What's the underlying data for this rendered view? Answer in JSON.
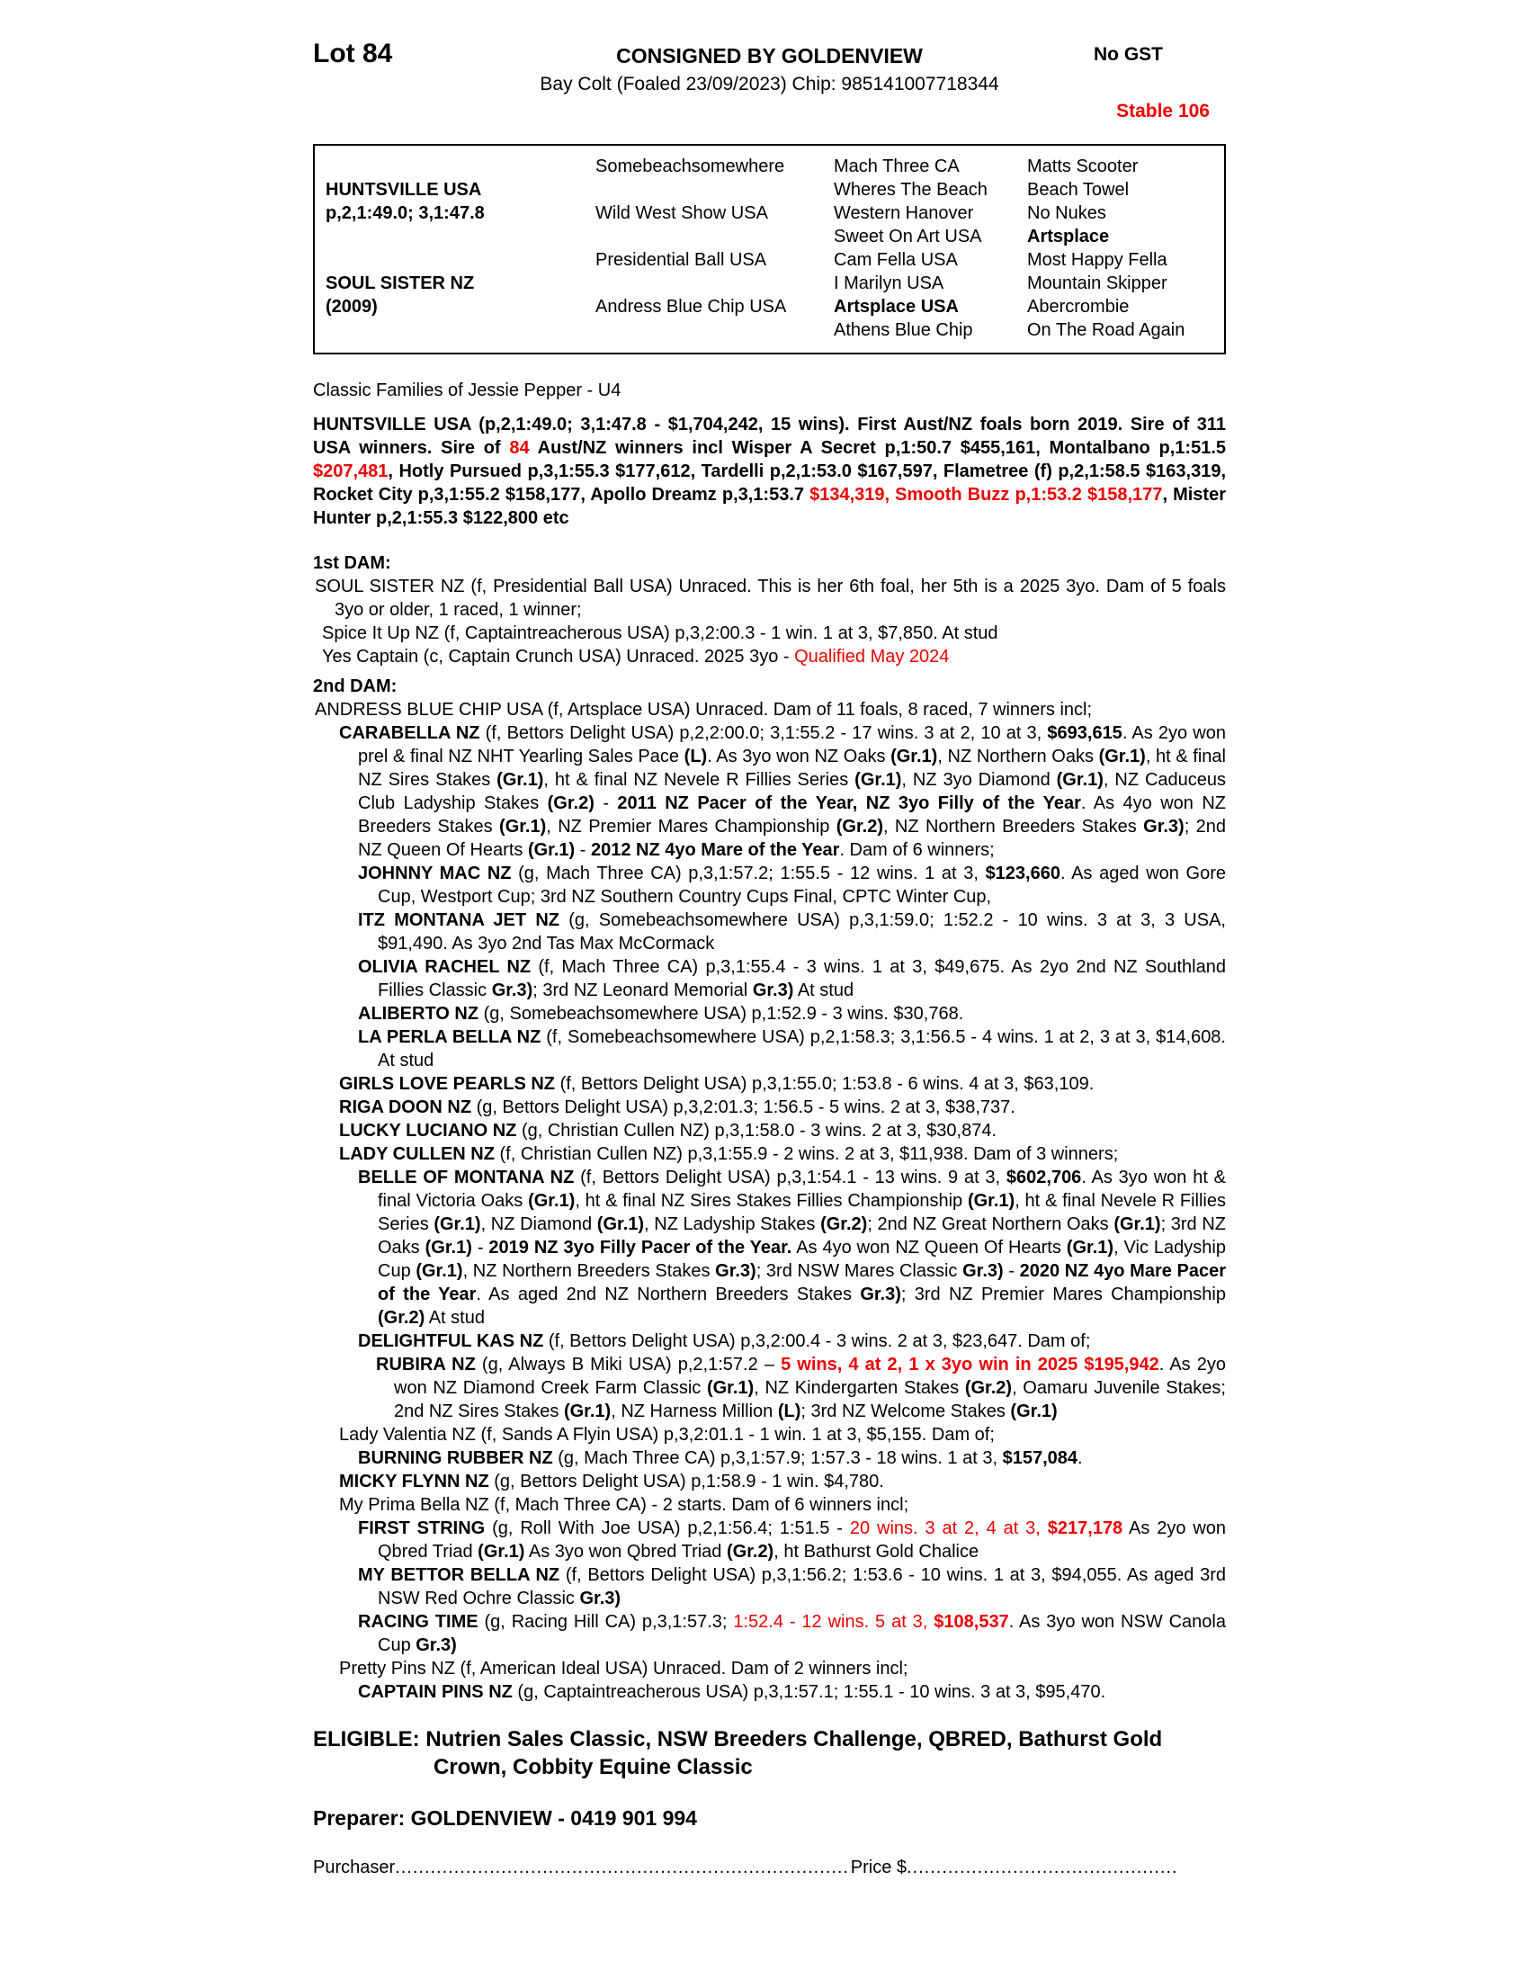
{
  "header": {
    "lot": "Lot 84",
    "consigned": "CONSIGNED BY GOLDENVIEW",
    "no_gst": "No GST",
    "foal_info": "Bay Colt (Foaled 23/09/2023) Chip: 985141007718344",
    "stable": "Stable 106"
  },
  "colors": {
    "accent_red": "#ee0000",
    "text": "#000000"
  },
  "pedigree": {
    "sire": {
      "name": "HUNTSVILLE USA",
      "record": "p,2,1:49.0; 3,1:47.8"
    },
    "dam": {
      "name": "SOUL SISTER NZ",
      "year": "(2009)"
    },
    "gen2": [
      "Somebeachsomewhere",
      "Wild West Show USA",
      "Presidential Ball USA",
      "Andress Blue Chip USA"
    ],
    "gen3": [
      "Mach Three CA",
      "Wheres The Beach",
      "Western Hanover",
      "Sweet On Art USA",
      "Cam Fella USA",
      "I Marilyn USA",
      "Artsplace USA",
      "Athens Blue Chip"
    ],
    "gen4": [
      "Matts Scooter",
      "Beach Towel",
      "No Nukes",
      "Artsplace",
      "Most Happy Fella",
      "Mountain Skipper",
      "Abercrombie",
      "On The Road Again"
    ]
  },
  "body": {
    "paragraphs": [
      {
        "name": "family-note",
        "cls": "flush",
        "spans": [
          [
            "n",
            "Classic Families of Jessie Pepper - U4"
          ]
        ]
      },
      {
        "name": "sire-summary",
        "cls": "flush",
        "spans": [
          [
            "b",
            "HUNTSVILLE USA (p,2,1:49.0; 3,1:47.8 - $1,704,242, 15 wins).  First Aust/NZ foals born 2019. Sire of 311 USA winners. Sire of "
          ],
          [
            "br",
            "84"
          ],
          [
            "b",
            " Aust/NZ winners incl Wisper A Secret p,1:50.7 $455,161, Montalbano p,1:51.5 "
          ],
          [
            "br",
            "$207,481"
          ],
          [
            "b",
            ", Hotly Pursued p,3,1:55.3 $177,612, Tardelli p,2,1:53.0 $167,597, Flametree (f) p,2,1:58.5 $163,319, Rocket City p,3,1:55.2 $158,177, Apollo Dreamz p,3,1:53.7 "
          ],
          [
            "br",
            "$134,319, Smooth Buzz p,1:53.2 $158,177"
          ],
          [
            "b",
            ", Mister Hunter p,2,1:55.3 $122,800 etc"
          ]
        ]
      },
      {
        "name": "first-dam-heading",
        "cls": "flush",
        "spans": [
          [
            "b",
            "1st DAM:"
          ]
        ]
      },
      {
        "name": "soul-sister",
        "cls": "dam",
        "spans": [
          [
            "n",
            "SOUL SISTER NZ (f, Presidential Ball USA) Unraced. This is her 6th foal, her 5th is a 2025 3yo. Dam of 5 foals 3yo or older, 1 raced, 1 winner;"
          ]
        ]
      },
      {
        "name": "spice-it-up",
        "cls": "l1s",
        "spans": [
          [
            "n",
            "Spice It Up NZ (f, Captaintreacherous USA) p,3,2:00.3 - 1 win. 1 at 3, $7,850. At stud"
          ]
        ]
      },
      {
        "name": "yes-captain",
        "cls": "l1s",
        "spans": [
          [
            "n",
            "Yes Captain (c, Captain Crunch USA) Unraced. 2025 3yo - "
          ],
          [
            "r",
            "Qualified May 2024"
          ]
        ]
      },
      {
        "name": "second-dam-heading",
        "cls": "flush",
        "spans": [
          [
            "b",
            "2nd DAM:"
          ]
        ]
      },
      {
        "name": "andress-blue-chip",
        "cls": "dam",
        "spans": [
          [
            "n",
            "ANDRESS BLUE CHIP USA (f, Artsplace USA) Unraced. Dam of 11 foals, 8 raced, 7 winners incl;"
          ]
        ]
      },
      {
        "name": "carabella",
        "cls": "l1",
        "spans": [
          [
            "b",
            "CARABELLA NZ"
          ],
          [
            "n",
            " (f, Bettors Delight USA) p,2,2:00.0; 3,1:55.2 - 17 wins. 3 at 2, 10 at 3, "
          ],
          [
            "b",
            "$693,615"
          ],
          [
            "n",
            ". As 2yo won prel & final NZ NHT Yearling Sales Pace "
          ],
          [
            "b",
            "(L)"
          ],
          [
            "n",
            ". As 3yo won NZ Oaks "
          ],
          [
            "b",
            "(Gr.1)"
          ],
          [
            "n",
            ", NZ Northern Oaks "
          ],
          [
            "b",
            "(Gr.1)"
          ],
          [
            "n",
            ", ht & final NZ Sires Stakes "
          ],
          [
            "b",
            "(Gr.1)"
          ],
          [
            "n",
            ", ht & final NZ Nevele R Fillies Series "
          ],
          [
            "b",
            "(Gr.1)"
          ],
          [
            "n",
            ", NZ 3yo Diamond "
          ],
          [
            "b",
            "(Gr.1)"
          ],
          [
            "n",
            ", NZ Caduceus Club Ladyship Stakes "
          ],
          [
            "b",
            "(Gr.2)"
          ],
          [
            "n",
            " - "
          ],
          [
            "b",
            "2011 NZ Pacer of the Year, NZ 3yo Filly of the Year"
          ],
          [
            "n",
            ". As 4yo won NZ Breeders Stakes "
          ],
          [
            "b",
            "(Gr.1)"
          ],
          [
            "n",
            ", NZ Premier Mares Championship "
          ],
          [
            "b",
            "(Gr.2)"
          ],
          [
            "n",
            ", NZ Northern Breeders Stakes "
          ],
          [
            "b",
            "Gr.3)"
          ],
          [
            "n",
            "; 2nd NZ Queen Of Hearts "
          ],
          [
            "b",
            "(Gr.1)"
          ],
          [
            "n",
            " - "
          ],
          [
            "b",
            "2012 NZ 4yo Mare of the Year"
          ],
          [
            "n",
            ". Dam of 6 winners;"
          ]
        ]
      },
      {
        "name": "johnny-mac",
        "cls": "l2",
        "spans": [
          [
            "b",
            "JOHNNY MAC NZ"
          ],
          [
            "n",
            " (g, Mach Three CA) p,3,1:57.2; 1:55.5 - 12 wins. 1 at 3, "
          ],
          [
            "b",
            "$123,660"
          ],
          [
            "n",
            ". As aged won Gore Cup, Westport Cup; 3rd NZ Southern Country Cups Final, CPTC Winter Cup,"
          ]
        ]
      },
      {
        "name": "itz-montana-jet",
        "cls": "l2",
        "spans": [
          [
            "b",
            "ITZ MONTANA JET NZ"
          ],
          [
            "n",
            " (g, Somebeachsomewhere USA) p,3,1:59.0; 1:52.2 - 10 wins. 3 at 3, 3 USA, $91,490. As 3yo 2nd Tas Max McCormack"
          ]
        ]
      },
      {
        "name": "olivia-rachel",
        "cls": "l2",
        "spans": [
          [
            "b",
            "OLIVIA RACHEL NZ"
          ],
          [
            "n",
            " (f, Mach Three CA) p,3,1:55.4 - 3 wins. 1 at 3, $49,675. As 2yo 2nd NZ Southland Fillies Classic "
          ],
          [
            "b",
            "Gr.3)"
          ],
          [
            "n",
            "; 3rd NZ Leonard Memorial "
          ],
          [
            "b",
            "Gr.3)"
          ],
          [
            "n",
            " At stud"
          ]
        ]
      },
      {
        "name": "aliberto",
        "cls": "l2",
        "spans": [
          [
            "b",
            "ALIBERTO NZ"
          ],
          [
            "n",
            " (g, Somebeachsomewhere USA) p,1:52.9 - 3 wins. $30,768."
          ]
        ]
      },
      {
        "name": "la-perla-bella",
        "cls": "l2",
        "spans": [
          [
            "b",
            "LA PERLA BELLA NZ"
          ],
          [
            "n",
            " (f, Somebeachsomewhere USA) p,2,1:58.3; 3,1:56.5 - 4 wins. 1 at 2, 3 at 3, $14,608. At stud"
          ]
        ]
      },
      {
        "name": "girls-love-pearls",
        "cls": "l1",
        "spans": [
          [
            "b",
            "GIRLS LOVE PEARLS NZ"
          ],
          [
            "n",
            " (f, Bettors Delight USA) p,3,1:55.0; 1:53.8 - 6 wins. 4 at 3, $63,109."
          ]
        ]
      },
      {
        "name": "riga-doon",
        "cls": "l1",
        "spans": [
          [
            "b",
            "RIGA DOON NZ"
          ],
          [
            "n",
            " (g, Bettors Delight USA) p,3,2:01.3; 1:56.5 - 5 wins. 2 at 3, $38,737."
          ]
        ]
      },
      {
        "name": "lucky-luciano",
        "cls": "l1",
        "spans": [
          [
            "b",
            "LUCKY LUCIANO NZ"
          ],
          [
            "n",
            " (g, Christian Cullen NZ) p,3,1:58.0 - 3 wins. 2 at 3, $30,874."
          ]
        ]
      },
      {
        "name": "lady-cullen",
        "cls": "l1",
        "spans": [
          [
            "b",
            "LADY CULLEN NZ"
          ],
          [
            "n",
            " (f, Christian Cullen NZ) p,3,1:55.9 - 2 wins. 2 at 3, $11,938. Dam of 3 winners;"
          ]
        ]
      },
      {
        "name": "belle-of-montana",
        "cls": "l2",
        "spans": [
          [
            "b",
            "BELLE OF MONTANA NZ"
          ],
          [
            "n",
            " (f, Bettors Delight USA) p,3,1:54.1 - 13 wins. 9 at 3, "
          ],
          [
            "b",
            "$602,706"
          ],
          [
            "n",
            ". As 3yo won ht & final Victoria Oaks "
          ],
          [
            "b",
            "(Gr.1)"
          ],
          [
            "n",
            ", ht & final NZ Sires Stakes Fillies Championship "
          ],
          [
            "b",
            "(Gr.1)"
          ],
          [
            "n",
            ", ht & final Nevele R Fillies Series "
          ],
          [
            "b",
            "(Gr.1)"
          ],
          [
            "n",
            ", NZ Diamond "
          ],
          [
            "b",
            "(Gr.1)"
          ],
          [
            "n",
            ", NZ Ladyship Stakes "
          ],
          [
            "b",
            "(Gr.2)"
          ],
          [
            "n",
            "; 2nd NZ Great Northern Oaks "
          ],
          [
            "b",
            "(Gr.1)"
          ],
          [
            "n",
            "; 3rd NZ Oaks "
          ],
          [
            "b",
            "(Gr.1)"
          ],
          [
            "n",
            " - "
          ],
          [
            "b",
            "2019 NZ 3yo Filly Pacer of the Year."
          ],
          [
            "n",
            " As 4yo won NZ Queen Of Hearts "
          ],
          [
            "b",
            "(Gr.1)"
          ],
          [
            "n",
            ", Vic Ladyship Cup "
          ],
          [
            "b",
            "(Gr.1)"
          ],
          [
            "n",
            ", NZ Northern Breeders Stakes "
          ],
          [
            "b",
            "Gr.3)"
          ],
          [
            "n",
            "; 3rd NSW Mares Classic "
          ],
          [
            "b",
            "Gr.3)"
          ],
          [
            "n",
            " - "
          ],
          [
            "b",
            "2020 NZ 4yo Mare Pacer of the Year"
          ],
          [
            "n",
            ". As aged 2nd NZ Northern Breeders Stakes "
          ],
          [
            "b",
            "Gr.3)"
          ],
          [
            "n",
            "; 3rd NZ Premier Mares Championship "
          ],
          [
            "b",
            "(Gr.2)"
          ],
          [
            "n",
            " At stud"
          ]
        ]
      },
      {
        "name": "delightful-kas",
        "cls": "l2",
        "spans": [
          [
            "b",
            "DELIGHTFUL KAS NZ"
          ],
          [
            "n",
            " (f, Bettors Delight USA) p,3,2:00.4 - 3 wins. 2 at 3, $23,647. Dam of;"
          ]
        ]
      },
      {
        "name": "rubira",
        "cls": "l3",
        "spans": [
          [
            "b",
            "RUBIRA NZ"
          ],
          [
            "n",
            " (g, Always B Miki USA) p,2,1:57.2 – "
          ],
          [
            "br",
            "5 wins, 4 at 2, 1 x 3yo win in 2025 $195,942"
          ],
          [
            "n",
            ". As 2yo won NZ Diamond Creek Farm Classic "
          ],
          [
            "b",
            "(Gr.1)"
          ],
          [
            "n",
            ", NZ Kindergarten Stakes "
          ],
          [
            "b",
            "(Gr.2)"
          ],
          [
            "n",
            ", Oamaru Juvenile Stakes; 2nd NZ Sires Stakes "
          ],
          [
            "b",
            "(Gr.1)"
          ],
          [
            "n",
            ", NZ Harness Million "
          ],
          [
            "b",
            "(L)"
          ],
          [
            "n",
            "; 3rd NZ Welcome Stakes "
          ],
          [
            "b",
            "(Gr.1)"
          ]
        ]
      },
      {
        "name": "lady-valentia",
        "cls": "l1",
        "spans": [
          [
            "n",
            "Lady Valentia NZ (f, Sands A Flyin USA) p,3,2:01.1 - 1 win. 1 at 3, $5,155. Dam of;"
          ]
        ]
      },
      {
        "name": "burning-rubber",
        "cls": "l2",
        "spans": [
          [
            "b",
            "BURNING RUBBER NZ"
          ],
          [
            "n",
            " (g, Mach Three CA) p,3,1:57.9; 1:57.3 - 18 wins. 1 at 3, "
          ],
          [
            "b",
            "$157,084"
          ],
          [
            "n",
            "."
          ]
        ]
      },
      {
        "name": "micky-flynn",
        "cls": "l1",
        "spans": [
          [
            "b",
            "MICKY FLYNN NZ"
          ],
          [
            "n",
            " (g, Bettors Delight USA) p,1:58.9 - 1 win. $4,780."
          ]
        ]
      },
      {
        "name": "my-prima-bella",
        "cls": "l1",
        "spans": [
          [
            "n",
            "My Prima Bella NZ (f, Mach Three CA) - 2 starts. Dam of 6 winners incl;"
          ]
        ]
      },
      {
        "name": "first-string",
        "cls": "l2",
        "spans": [
          [
            "b",
            "FIRST STRING"
          ],
          [
            "n",
            " (g, Roll With Joe USA) p,2,1:56.4; 1:51.5 - "
          ],
          [
            "r",
            "20 wins. 3 at 2, 4 at 3, "
          ],
          [
            "br",
            "$217,178"
          ],
          [
            "n",
            " As 2yo won Qbred Triad "
          ],
          [
            "b",
            "(Gr.1)"
          ],
          [
            "n",
            " As 3yo won Qbred Triad "
          ],
          [
            "b",
            "(Gr.2)"
          ],
          [
            "n",
            ", ht Bathurst Gold Chalice"
          ]
        ]
      },
      {
        "name": "my-bettor-bella",
        "cls": "l2",
        "spans": [
          [
            "b",
            "MY BETTOR BELLA NZ"
          ],
          [
            "n",
            " (f, Bettors Delight USA) p,3,1:56.2; 1:53.6 - 10 wins. 1 at 3, $94,055. As aged 3rd NSW Red Ochre Classic "
          ],
          [
            "b",
            "Gr.3)"
          ]
        ]
      },
      {
        "name": "racing-time",
        "cls": "l2",
        "spans": [
          [
            "b",
            "RACING TIME"
          ],
          [
            "n",
            " (g, Racing Hill CA) p,3,1:57.3; "
          ],
          [
            "r",
            "1:52.4 - 12 wins. 5 at 3, "
          ],
          [
            "br",
            "$108,537"
          ],
          [
            "n",
            ". As 3yo won NSW Canola Cup "
          ],
          [
            "b",
            "Gr.3)"
          ]
        ]
      },
      {
        "name": "pretty-pins",
        "cls": "l1",
        "spans": [
          [
            "n",
            "Pretty Pins NZ (f, American Ideal USA) Unraced. Dam of 2 winners incl;"
          ]
        ]
      },
      {
        "name": "captain-pins",
        "cls": "l2",
        "spans": [
          [
            "b",
            "CAPTAIN PINS NZ"
          ],
          [
            "n",
            " (g, Captaintreacherous USA) p,3,1:57.1; 1:55.1 - 10 wins. 3 at 3, $95,470."
          ]
        ]
      },
      {
        "name": "eligible",
        "cls": "flush",
        "spans": [
          [
            "b",
            "ELIGIBLE: Nutrien Sales Classic, NSW Breeders Challenge, QBRED, Bathurst Gold Crown, Cobbity Equine Classic"
          ]
        ]
      },
      {
        "name": "preparer",
        "cls": "flush",
        "spans": [
          [
            "b",
            "Preparer: GOLDENVIEW - 0419 901 994"
          ]
        ]
      }
    ]
  },
  "footer": {
    "purchaser_label": "Purchaser",
    "purchaser_dots": "........................................................................................................................................................",
    "price_label": "Price $",
    "price_dots": "................................................................"
  }
}
